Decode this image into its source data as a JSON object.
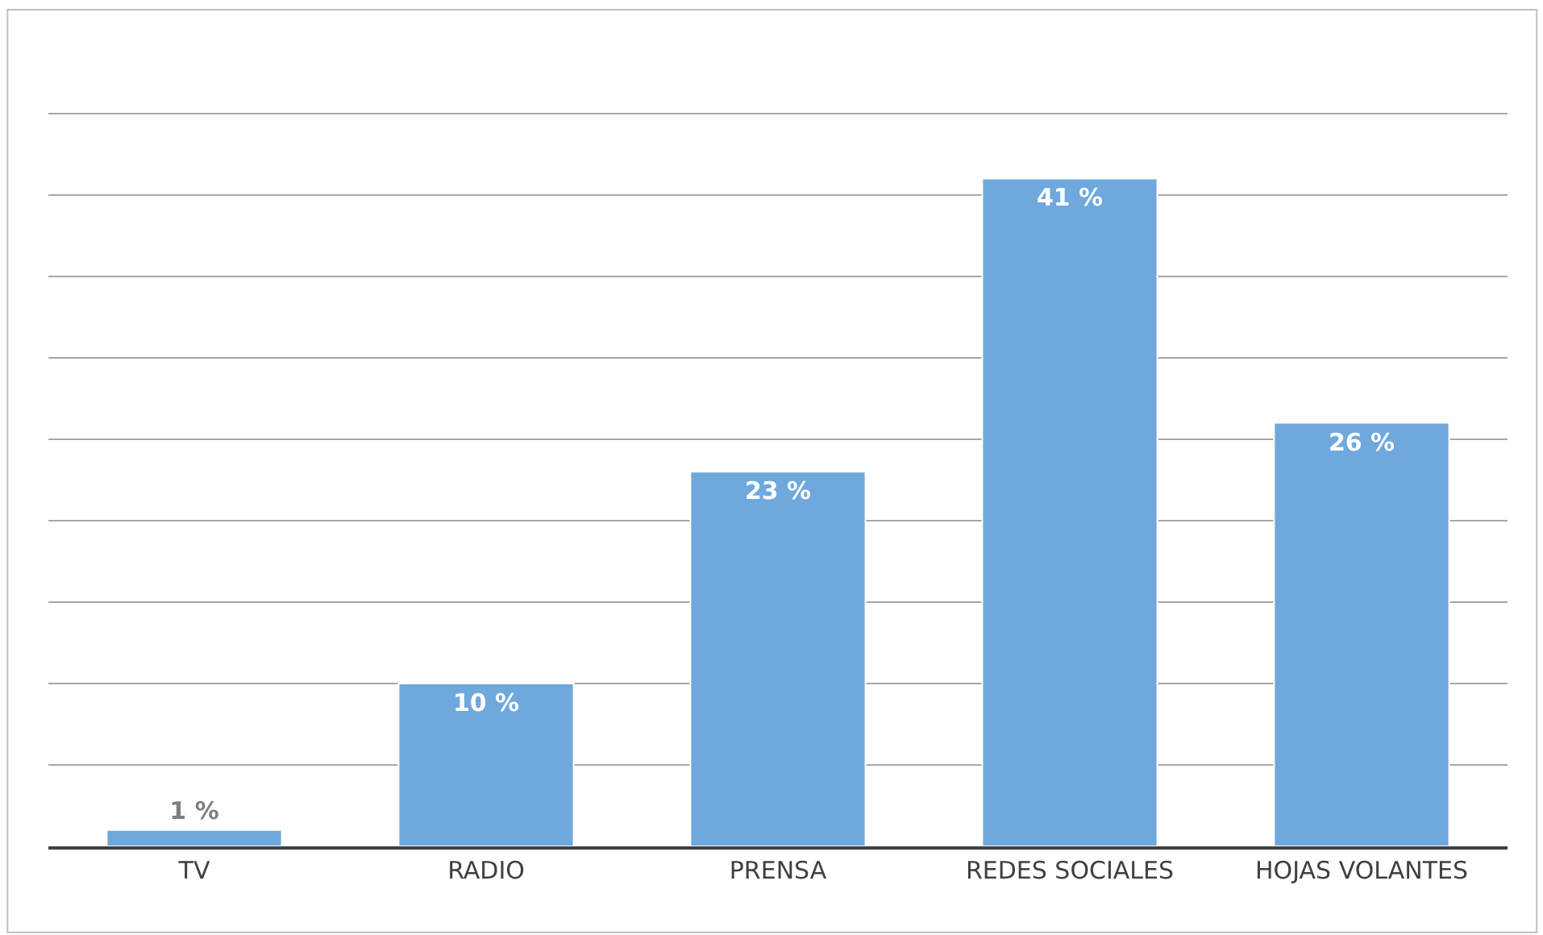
{
  "chart_data": {
    "type": "bar",
    "categories": [
      "TV",
      "RADIO",
      "PRENSA",
      "REDES SOCIALES",
      "HOJAS VOLANTES"
    ],
    "values": [
      1,
      10,
      23,
      41,
      26
    ],
    "value_labels": [
      "1 %",
      "10 %",
      "23 %",
      "41 %",
      "26 %"
    ],
    "color": "#6fa8dc",
    "yticks": [
      {
        "value": 0,
        "label": null
      },
      {
        "value": 5,
        "label": null
      },
      {
        "value": 10,
        "label": null
      },
      {
        "value": 15,
        "label": null
      },
      {
        "value": 20,
        "label": null
      },
      {
        "value": 25,
        "label": null
      },
      {
        "value": 30,
        "label": null
      },
      {
        "value": 35,
        "label": null
      },
      {
        "value": 40,
        "label": null
      },
      {
        "value": 45,
        "label": null
      }
    ],
    "grid": "y",
    "tick_labels": "x"
  }
}
